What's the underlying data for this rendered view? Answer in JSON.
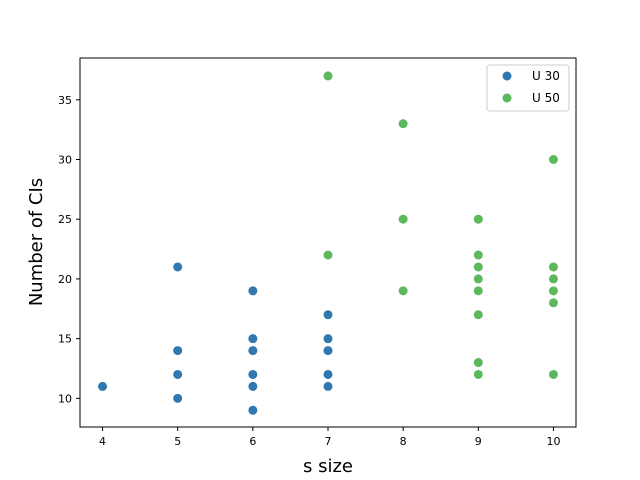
{
  "chart_data": {
    "type": "scatter",
    "title": "",
    "xlabel": "s size",
    "ylabel": "Number of CIs",
    "xlim": [
      3.7,
      10.3
    ],
    "ylim": [
      7.6,
      38.5
    ],
    "xticks": [
      4,
      5,
      6,
      7,
      8,
      9,
      10
    ],
    "yticks": [
      10,
      15,
      20,
      25,
      30,
      35
    ],
    "grid": false,
    "legend_position": "top-right",
    "series": [
      {
        "name": "U 30",
        "color": "#2f78b0",
        "points": [
          {
            "x": 4,
            "y": 11
          },
          {
            "x": 5,
            "y": 21
          },
          {
            "x": 5,
            "y": 14
          },
          {
            "x": 5,
            "y": 12
          },
          {
            "x": 5,
            "y": 10
          },
          {
            "x": 6,
            "y": 19
          },
          {
            "x": 6,
            "y": 15
          },
          {
            "x": 6,
            "y": 14
          },
          {
            "x": 6,
            "y": 12
          },
          {
            "x": 6,
            "y": 11
          },
          {
            "x": 6,
            "y": 9
          },
          {
            "x": 7,
            "y": 17
          },
          {
            "x": 7,
            "y": 15
          },
          {
            "x": 7,
            "y": 14
          },
          {
            "x": 7,
            "y": 12
          },
          {
            "x": 7,
            "y": 11
          }
        ]
      },
      {
        "name": "U 50",
        "color": "#5cb85c",
        "points": [
          {
            "x": 7,
            "y": 37
          },
          {
            "x": 7,
            "y": 22
          },
          {
            "x": 8,
            "y": 33
          },
          {
            "x": 8,
            "y": 25
          },
          {
            "x": 8,
            "y": 19
          },
          {
            "x": 9,
            "y": 25
          },
          {
            "x": 9,
            "y": 22
          },
          {
            "x": 9,
            "y": 21
          },
          {
            "x": 9,
            "y": 20
          },
          {
            "x": 9,
            "y": 19
          },
          {
            "x": 9,
            "y": 17
          },
          {
            "x": 9,
            "y": 13
          },
          {
            "x": 9,
            "y": 12
          },
          {
            "x": 10,
            "y": 30
          },
          {
            "x": 10,
            "y": 21
          },
          {
            "x": 10,
            "y": 20
          },
          {
            "x": 10,
            "y": 19
          },
          {
            "x": 10,
            "y": 18
          },
          {
            "x": 10,
            "y": 12
          }
        ]
      }
    ]
  }
}
